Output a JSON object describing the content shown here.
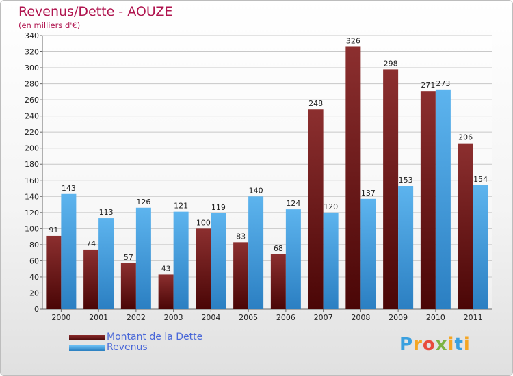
{
  "chart_data": {
    "type": "bar",
    "title": "Revenus/Dette - AOUZE",
    "subtitle": "(en milliers d'€)",
    "categories": [
      "2000",
      "2001",
      "2002",
      "2003",
      "2004",
      "2005",
      "2006",
      "2007",
      "2008",
      "2009",
      "2010",
      "2011"
    ],
    "series": [
      {
        "name": "Montant de la Dette",
        "color": "#7a1c1c",
        "values": [
          91,
          74,
          57,
          43,
          100,
          83,
          68,
          248,
          326,
          298,
          271,
          206
        ]
      },
      {
        "name": "Revenus",
        "color": "#4ea6e6",
        "values": [
          143,
          113,
          126,
          121,
          119,
          140,
          124,
          120,
          137,
          153,
          273,
          154
        ]
      }
    ],
    "ylim": [
      0,
      340
    ],
    "yticks": [
      0,
      20,
      40,
      60,
      80,
      100,
      120,
      140,
      160,
      180,
      200,
      220,
      240,
      260,
      280,
      300,
      320,
      340
    ],
    "grid": true,
    "legend_position": "bottom-left"
  },
  "logo": {
    "text": "Proxiti",
    "letters": [
      "P",
      "r",
      "o",
      "x",
      "i",
      "t",
      "i"
    ]
  }
}
